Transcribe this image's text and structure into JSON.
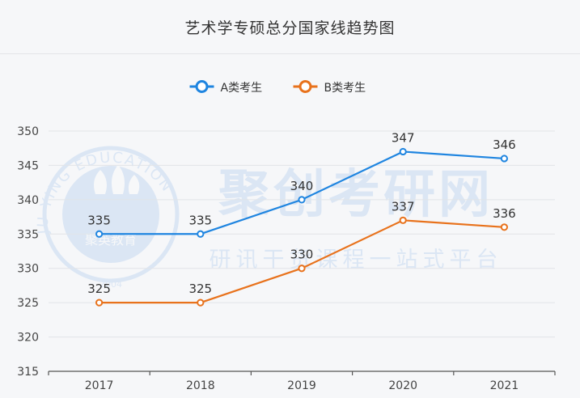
{
  "chart_data": {
    "type": "line",
    "title": "艺术学专硕总分国家线趋势图",
    "categories": [
      "2017",
      "2018",
      "2019",
      "2020",
      "2021"
    ],
    "ylim": [
      315,
      350
    ],
    "yticks": [
      315,
      320,
      325,
      330,
      335,
      340,
      345,
      350
    ],
    "grid": true,
    "legend_position": "top-center",
    "series": [
      {
        "name": "A类考生",
        "color": "#1f85e0",
        "values": [
          335,
          335,
          340,
          347,
          346
        ]
      },
      {
        "name": "B类考生",
        "color": "#e8721c",
        "values": [
          325,
          325,
          330,
          337,
          336
        ]
      }
    ]
  },
  "watermark": {
    "brand": "聚创考研网",
    "slogan": "研讯干货课程一站式平台",
    "seal_text": "JU YING EDUCATION",
    "seal_name": "聚英教育",
    "seal_year": "2004"
  }
}
